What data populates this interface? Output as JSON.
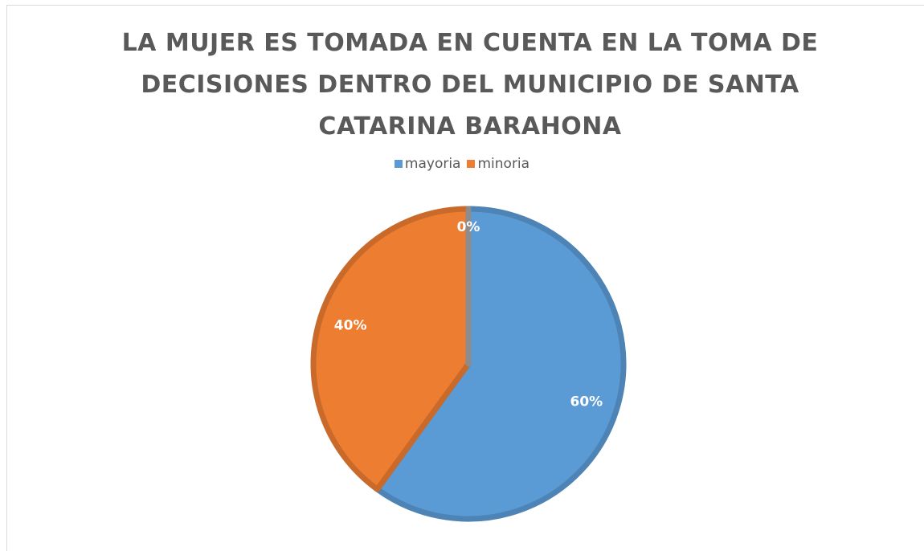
{
  "chart_data": {
    "type": "pie",
    "title": "LA MUJER ES TOMADA EN CUENTA EN LA TOMA DE DECISIONES DENTRO DEL MUNICIPIO DE SANTA CATARINA BARAHONA",
    "categories": [
      "mayoria",
      "minoria",
      null
    ],
    "values": [
      60,
      40,
      0
    ],
    "value_labels": [
      "60%",
      "40%",
      "0%"
    ],
    "colors": [
      "#5b9bd5",
      "#ed7d31",
      "#a5a5a5"
    ],
    "legend": "top"
  }
}
